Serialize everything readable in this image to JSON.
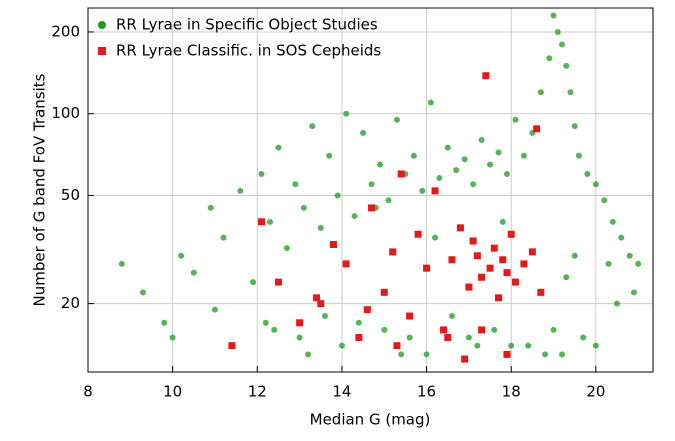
{
  "chart_data": {
    "type": "scatter",
    "xlabel": "Median G (mag)",
    "ylabel": "Number of G band FoV Transits",
    "xlim": [
      8,
      21.35
    ],
    "ylim": [
      11.2,
      245
    ],
    "ylog": true,
    "xticks": [
      8,
      10,
      12,
      14,
      16,
      18,
      20
    ],
    "yticks": [
      20,
      50,
      100,
      200
    ],
    "grid": true,
    "legend": "upper-left",
    "series": [
      {
        "name": "RR Lyrae in Specific Object Studies",
        "color": "#1f9a1f",
        "marker": "circle",
        "x": [
          8.8,
          9.3,
          9.8,
          10.2,
          10.5,
          10.9,
          11.2,
          11.6,
          11.9,
          12.1,
          12.3,
          12.5,
          12.7,
          12.9,
          13.1,
          13.3,
          13.5,
          13.7,
          13.9,
          14.1,
          14.3,
          14.5,
          14.7,
          14.9,
          15.1,
          15.3,
          15.5,
          15.7,
          15.9,
          16.1,
          16.3,
          16.5,
          16.7,
          16.9,
          17.1,
          17.3,
          17.5,
          17.7,
          17.9,
          18.1,
          18.3,
          18.5,
          18.7,
          18.9,
          19.0,
          19.1,
          19.2,
          19.3,
          19.4,
          19.5,
          19.6,
          19.8,
          20.0,
          20.2,
          20.4,
          20.6,
          20.8,
          21.0,
          12.2,
          13.0,
          14.0,
          15.0,
          16.0,
          17.0,
          18.0,
          19.0,
          20.0,
          13.6,
          15.4,
          17.2,
          18.8,
          19.3,
          19.5,
          20.3,
          10.0,
          11.0,
          12.4,
          13.2,
          14.4,
          15.6,
          16.6,
          17.6,
          18.4,
          19.2,
          19.7,
          20.5,
          20.9,
          14.8,
          16.2,
          17.8
        ],
        "values": [
          28,
          22,
          17,
          30,
          26,
          45,
          35,
          52,
          24,
          60,
          40,
          75,
          32,
          55,
          45,
          90,
          38,
          70,
          50,
          100,
          42,
          85,
          55,
          65,
          48,
          95,
          60,
          70,
          52,
          110,
          58,
          75,
          62,
          68,
          55,
          80,
          65,
          72,
          60,
          95,
          70,
          85,
          120,
          160,
          230,
          200,
          180,
          150,
          120,
          90,
          70,
          60,
          55,
          48,
          40,
          35,
          30,
          28,
          17,
          15,
          14,
          16,
          13,
          15,
          14,
          16,
          14,
          18,
          13,
          14,
          13,
          25,
          30,
          28,
          15,
          19,
          16,
          13,
          17,
          15,
          18,
          16,
          14,
          13,
          15,
          20,
          22,
          45,
          35,
          40
        ]
      },
      {
        "name": "RR Lyrae Classific. in SOS Cepheids",
        "color": "#e41a1a",
        "marker": "square",
        "x": [
          11.4,
          12.1,
          12.5,
          13.0,
          13.4,
          13.8,
          14.1,
          14.4,
          14.7,
          15.0,
          15.2,
          15.4,
          15.6,
          15.8,
          16.0,
          16.2,
          16.4,
          16.6,
          16.8,
          17.0,
          17.1,
          17.2,
          17.3,
          17.4,
          17.5,
          17.6,
          17.7,
          17.8,
          17.9,
          18.0,
          18.1,
          18.3,
          18.5,
          18.7,
          15.3,
          16.5,
          17.3,
          14.6,
          13.5,
          16.9,
          17.9,
          18.6
        ],
        "values": [
          14,
          40,
          24,
          17,
          21,
          33,
          28,
          15,
          45,
          22,
          31,
          60,
          18,
          36,
          27,
          52,
          16,
          29,
          38,
          23,
          34,
          30,
          25,
          138,
          27,
          32,
          21,
          29,
          26,
          36,
          24,
          28,
          31,
          22,
          14,
          15,
          16,
          19,
          20,
          12.5,
          13,
          88
        ]
      }
    ]
  }
}
